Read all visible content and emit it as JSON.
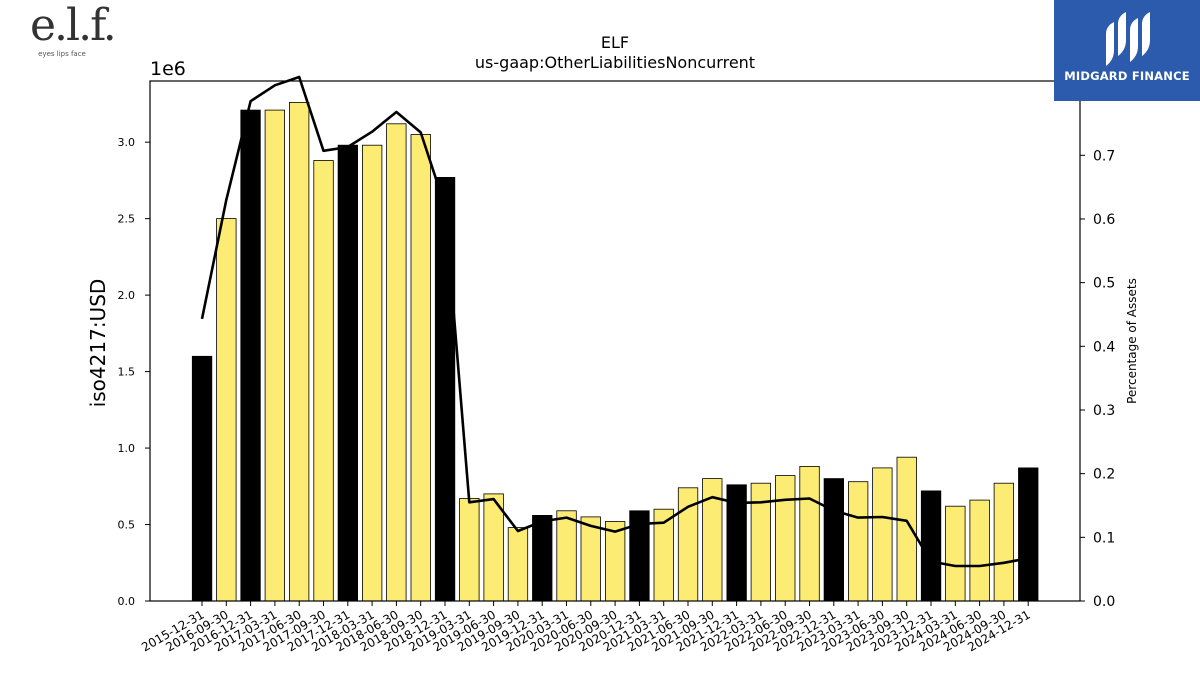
{
  "branding": {
    "company_logo_mark": "e.l.f.",
    "company_logo_tagline": "eyes lips face",
    "publisher_name": "MIDGARD FINANCE"
  },
  "chart_data": {
    "type": "bar",
    "title": "ELF",
    "subtitle": "us-gaap:OtherLiabilitiesNoncurrent",
    "ylabel": "iso4217:USD",
    "y2label": "Percentage of Assets",
    "y_offset_label": "1e6",
    "ylim": [
      0,
      3400000
    ],
    "y2lim": [
      0,
      0.8167
    ],
    "yticks": [
      0,
      500000,
      1000000,
      1500000,
      2000000,
      2500000,
      3000000
    ],
    "ytick_labels": [
      "0.0",
      "0.5",
      "1.0",
      "1.5",
      "2.0",
      "2.5",
      "3.0"
    ],
    "y2ticks": [
      0,
      0.1,
      0.2,
      0.3,
      0.4,
      0.5,
      0.6,
      0.7,
      0.8
    ],
    "y2tick_labels": [
      "0.0",
      "0.1",
      "0.2",
      "0.3",
      "0.4",
      "0.5",
      "0.6",
      "0.7",
      "0.8"
    ],
    "grid": false,
    "colors": {
      "annual_bar": "#000000",
      "quarterly_bar": "#fdec74",
      "bar_edge": "#000000",
      "line": "#000000"
    },
    "categories": [
      "2015-12-31",
      "2016-09-30",
      "2016-12-31",
      "2017-03-31",
      "2017-06-30",
      "2017-09-30",
      "2017-12-31",
      "2018-03-31",
      "2018-06-30",
      "2018-09-30",
      "2018-12-31",
      "2019-03-31",
      "2019-06-30",
      "2019-09-30",
      "2019-12-31",
      "2020-03-31",
      "2020-06-30",
      "2020-09-30",
      "2020-12-31",
      "2021-03-31",
      "2021-06-30",
      "2021-09-30",
      "2021-12-31",
      "2022-03-31",
      "2022-06-30",
      "2022-09-30",
      "2022-12-31",
      "2023-03-31",
      "2023-06-30",
      "2023-09-30",
      "2023-12-31",
      "2024-03-31",
      "2024-06-30",
      "2024-09-30",
      "2024-12-31"
    ],
    "series": [
      {
        "values": [
          1600000,
          2500000,
          3210000,
          3210000,
          3260000,
          2880000,
          2980000,
          2980000,
          3120000,
          3050000,
          2770000,
          670000,
          700000,
          480000,
          560000,
          590000,
          550000,
          520000,
          590000,
          600000,
          740000,
          800000,
          760000,
          770000,
          820000,
          880000,
          800000,
          780000,
          870000,
          940000,
          720000,
          620000,
          660000,
          770000,
          870000
        ],
        "bar_kind": [
          "annual",
          "quarterly",
          "annual",
          "quarterly",
          "quarterly",
          "quarterly",
          "annual",
          "quarterly",
          "quarterly",
          "quarterly",
          "annual",
          "quarterly",
          "quarterly",
          "quarterly",
          "annual",
          "quarterly",
          "quarterly",
          "quarterly",
          "annual",
          "quarterly",
          "quarterly",
          "quarterly",
          "annual",
          "quarterly",
          "quarterly",
          "quarterly",
          "annual",
          "quarterly",
          "quarterly",
          "quarterly",
          "annual",
          "quarterly",
          "quarterly",
          "quarterly",
          "annual"
        ]
      },
      {
        "axis": "right",
        "type": "line",
        "values": [
          0.443,
          0.63,
          0.785,
          0.81,
          0.823,
          0.707,
          0.713,
          0.737,
          0.768,
          0.736,
          0.62,
          0.155,
          0.16,
          0.11,
          0.125,
          0.131,
          0.118,
          0.109,
          0.121,
          0.123,
          0.148,
          0.163,
          0.154,
          0.155,
          0.159,
          0.161,
          0.142,
          0.131,
          0.132,
          0.126,
          0.062,
          0.055,
          0.055,
          0.06,
          0.067
        ]
      }
    ]
  }
}
